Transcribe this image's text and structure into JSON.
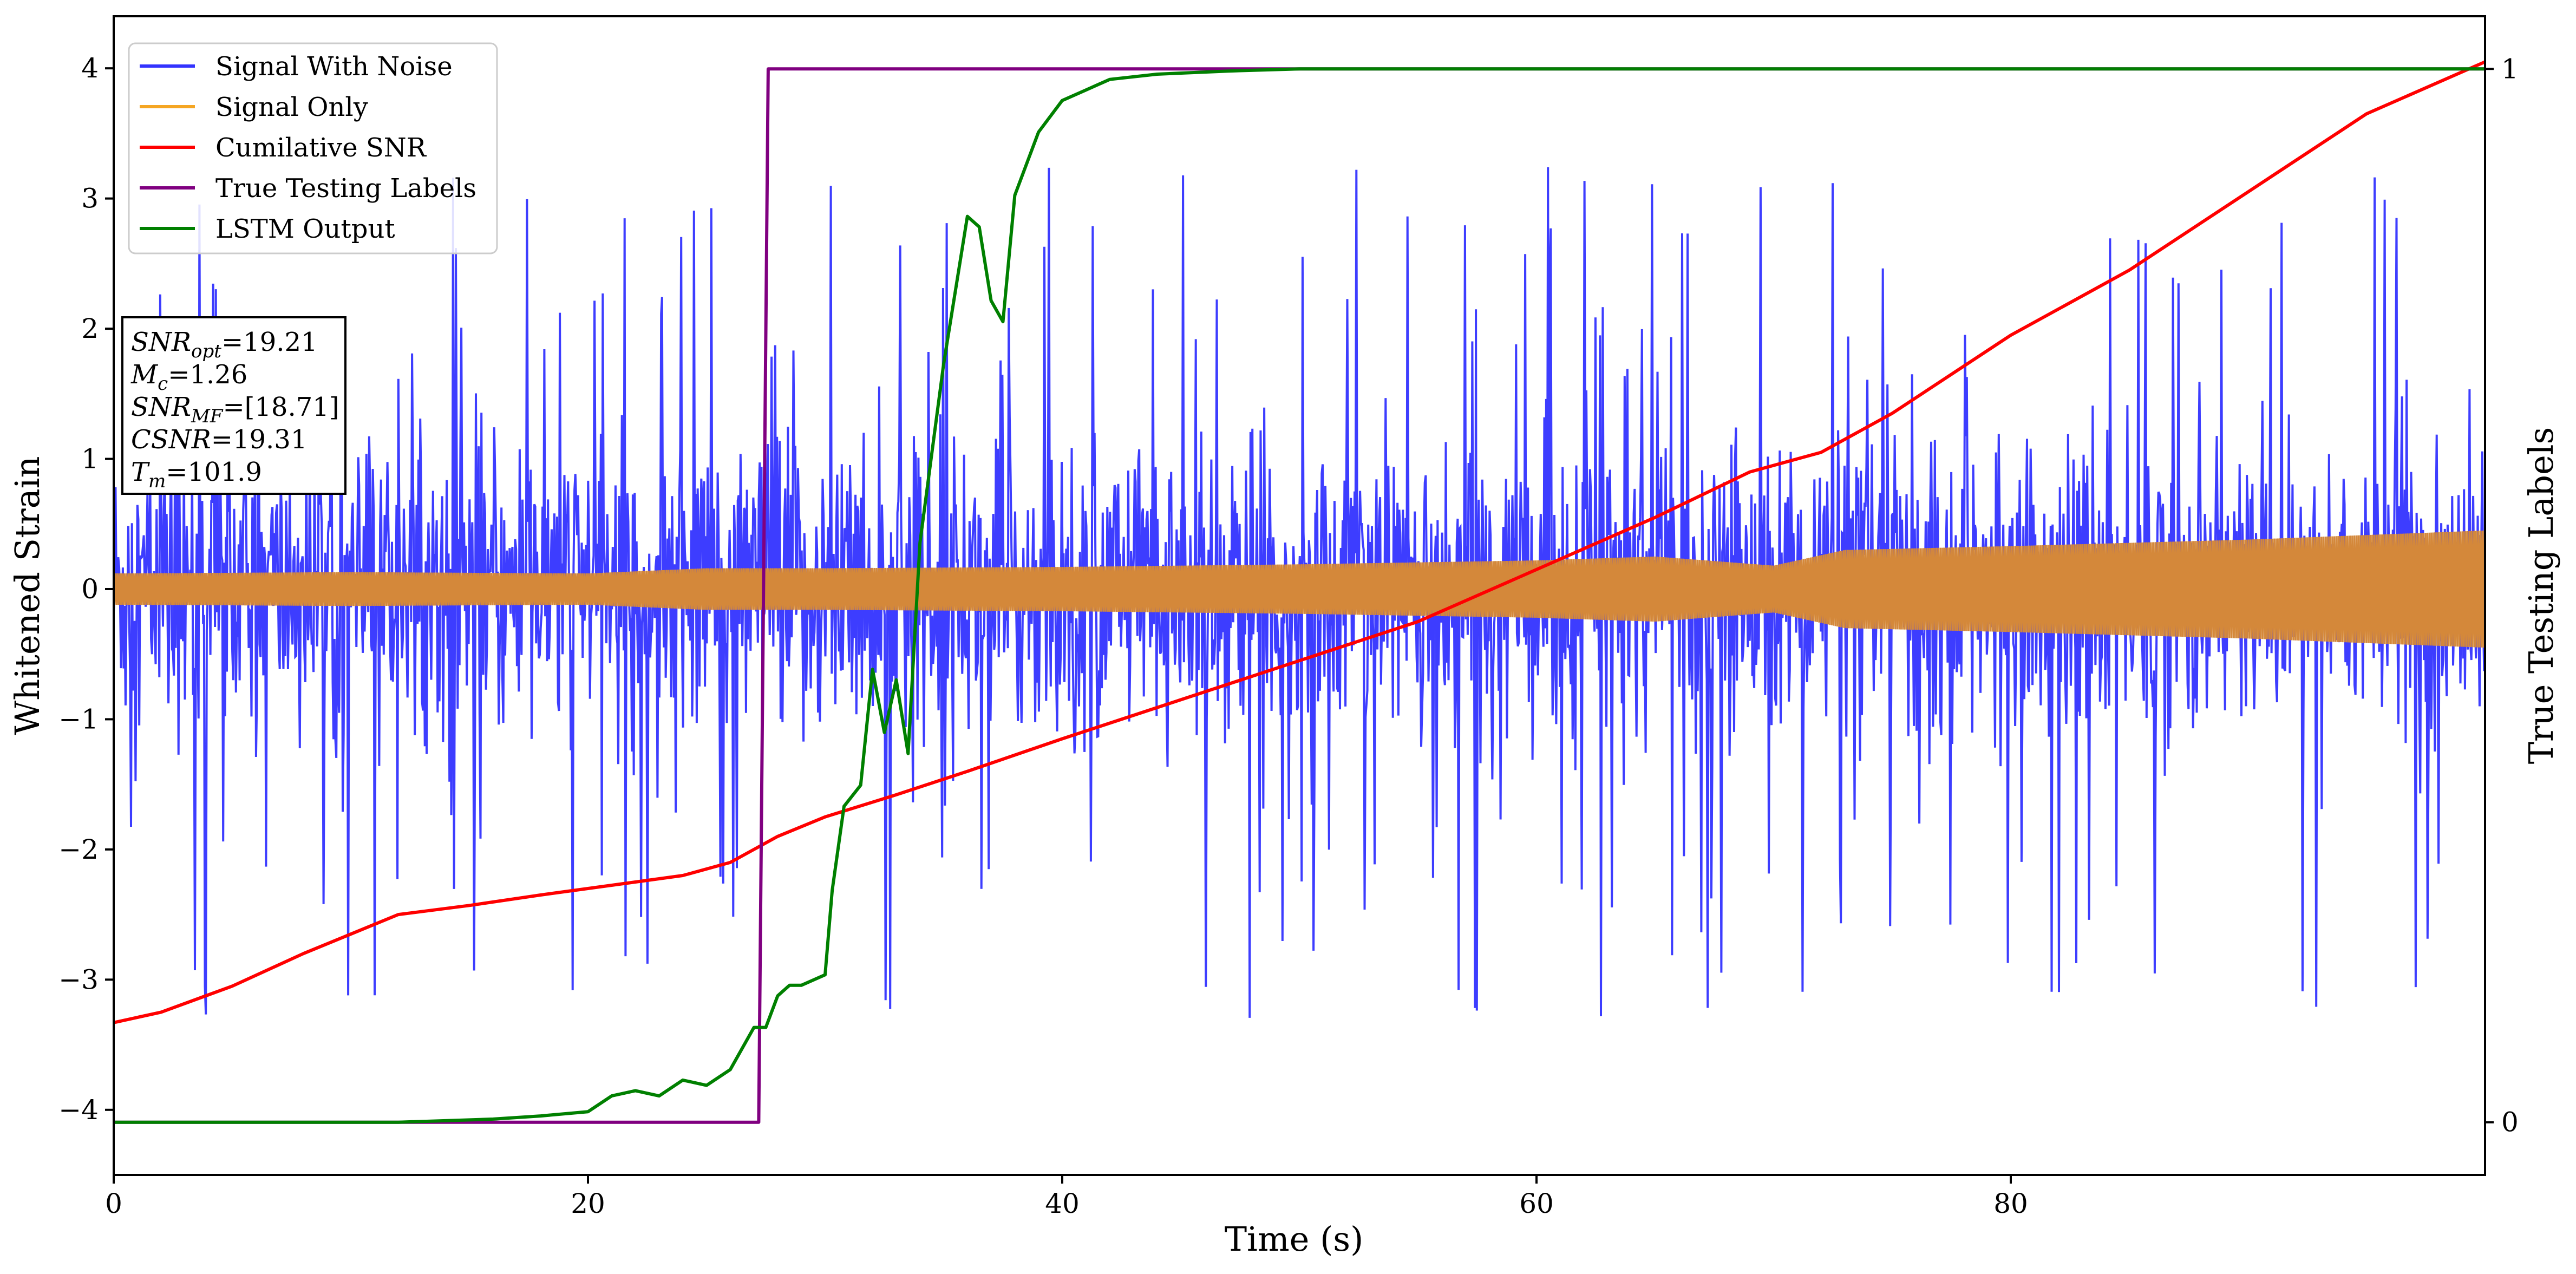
{
  "chart_data": {
    "type": "line",
    "title": "",
    "xlabel": "Time (s)",
    "ylabel_left": "Whitened Strain",
    "ylabel_right": "True Testing Labels",
    "xlim": [
      0,
      100
    ],
    "ylim_left": [
      -4.5,
      4.4
    ],
    "ylim_right": [
      -0.05,
      1.05
    ],
    "grid": false,
    "legend_placement": "top-left",
    "x_ticks": [
      0,
      20,
      40,
      60,
      80
    ],
    "x_tick_labels": [
      "0",
      "20",
      "40",
      "60",
      "80"
    ],
    "y_left_ticks": [
      -4,
      -3,
      -2,
      -1,
      0,
      1,
      2,
      3,
      4
    ],
    "y_left_tick_labels": [
      "−4",
      "−3",
      "−2",
      "−1",
      "0",
      "1",
      "2",
      "3",
      "4"
    ],
    "y_right_ticks": [
      0,
      1
    ],
    "y_right_tick_labels": [
      "0",
      "1"
    ],
    "series": [
      {
        "name": "Signal With Noise",
        "color": "#3333ff",
        "axis": "left",
        "description": "dense noise band",
        "typical_band": [
          -0.9,
          0.9
        ],
        "extreme_range": [
          -3.7,
          4.0
        ]
      },
      {
        "name": "Signal Only",
        "color": "#f5a623",
        "axis": "left",
        "amplitude_envelope": {
          "x": [
            0,
            10,
            20,
            25,
            30,
            40,
            50,
            60,
            65,
            70,
            73,
            80,
            90,
            100
          ],
          "amp": [
            0.12,
            0.13,
            0.12,
            0.16,
            0.16,
            0.17,
            0.19,
            0.22,
            0.25,
            0.18,
            0.3,
            0.33,
            0.38,
            0.45
          ]
        }
      },
      {
        "name": "Cumilative SNR",
        "color": "#ff0000",
        "axis": "left",
        "x": [
          0,
          2,
          5,
          8,
          10,
          12,
          15,
          18,
          20,
          22,
          24,
          26,
          28,
          30,
          33,
          36,
          40,
          45,
          50,
          55,
          60,
          65,
          69,
          72,
          75,
          80,
          85,
          90,
          95,
          100
        ],
        "y": [
          -3.33,
          -3.25,
          -3.05,
          -2.8,
          -2.65,
          -2.5,
          -2.43,
          -2.35,
          -2.3,
          -2.25,
          -2.2,
          -2.1,
          -1.9,
          -1.75,
          -1.58,
          -1.4,
          -1.15,
          -0.85,
          -0.55,
          -0.25,
          0.15,
          0.55,
          0.9,
          1.05,
          1.35,
          1.95,
          2.45,
          3.05,
          3.65,
          4.05
        ]
      },
      {
        "name": "True Testing Labels",
        "color": "#800080",
        "axis": "right",
        "x": [
          0,
          27.2,
          27.6,
          100
        ],
        "y": [
          0,
          0,
          1,
          1
        ]
      },
      {
        "name": "LSTM Output",
        "color": "#008000",
        "axis": "right",
        "x": [
          0,
          12,
          16,
          18,
          20,
          21,
          22,
          23,
          24,
          25,
          26,
          27,
          27.5,
          28,
          28.5,
          29,
          30,
          30.3,
          30.8,
          31.5,
          32,
          32.5,
          33,
          33.5,
          34,
          35,
          36,
          36.5,
          37,
          37.5,
          38,
          39,
          40,
          41,
          42,
          44,
          47,
          50,
          55,
          100
        ],
        "y": [
          0,
          0,
          0.003,
          0.006,
          0.01,
          0.025,
          0.03,
          0.025,
          0.04,
          0.035,
          0.05,
          0.09,
          0.09,
          0.12,
          0.13,
          0.13,
          0.14,
          0.22,
          0.3,
          0.32,
          0.43,
          0.37,
          0.42,
          0.35,
          0.55,
          0.72,
          0.86,
          0.85,
          0.78,
          0.76,
          0.88,
          0.94,
          0.97,
          0.98,
          0.99,
          0.995,
          0.998,
          1.0,
          1.0,
          1.0
        ]
      }
    ],
    "info_box": {
      "snr_opt_base": "SNR",
      "snr_opt_sub": "opt",
      "snr_opt_value": "=19.21",
      "mc_base": "M",
      "mc_sub": "c",
      "mc_value": "=1.26",
      "snr_mf_base": "SNR",
      "snr_mf_sub": "MF",
      "snr_mf_value": "=[18.71]",
      "csnr_label": "CSNR",
      "csnr_value": "=19.31",
      "tm_base": "T",
      "tm_sub": "m",
      "tm_value": "=101.9"
    }
  }
}
